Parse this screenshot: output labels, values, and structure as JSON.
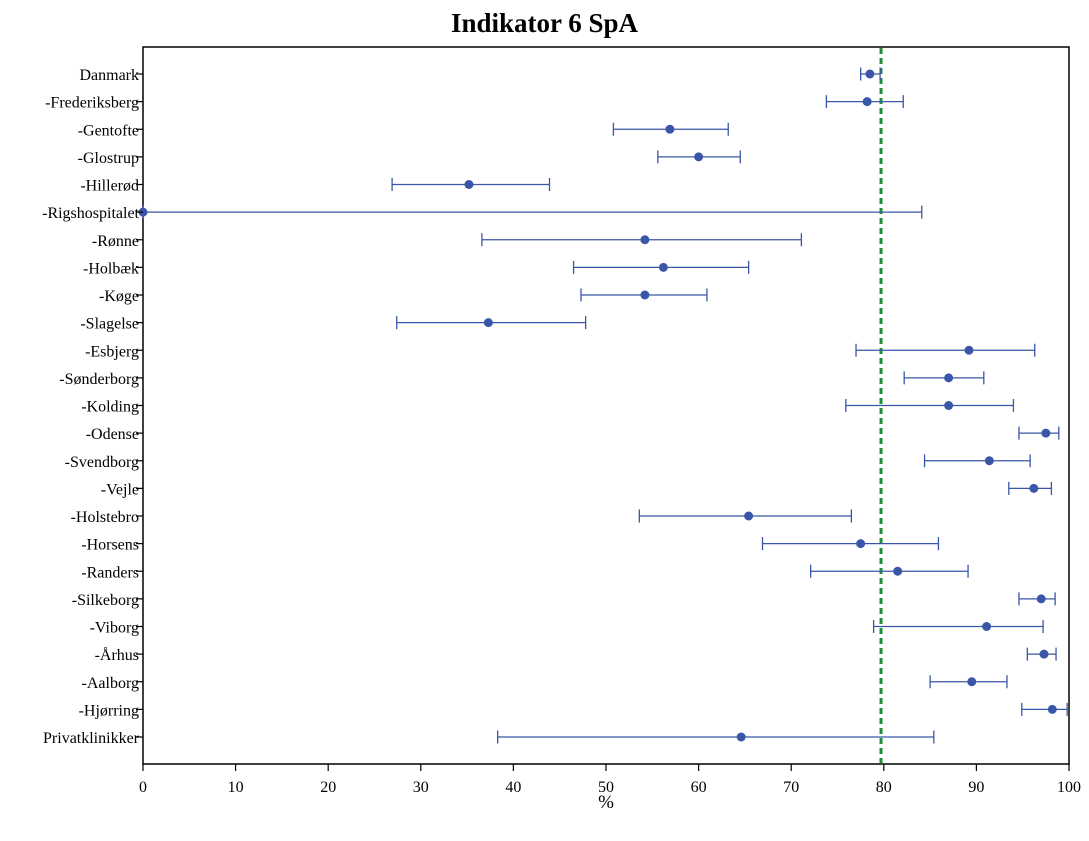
{
  "chart_data": {
    "type": "scatter",
    "title": "Indikator 6 SpA",
    "xlabel": "%",
    "ylabel": "",
    "xlim": [
      0,
      100
    ],
    "xticks": [
      0,
      10,
      20,
      30,
      40,
      50,
      60,
      70,
      80,
      90,
      100
    ],
    "grid": false,
    "legend": "none",
    "reference_line": {
      "x": 79.7,
      "style": "dashed",
      "color": "#1e8c3a"
    },
    "colors": {
      "points": "#3a56a8",
      "error_bars": "#3a56a8",
      "axes": "#000000"
    },
    "categories": [
      "Danmark",
      "-Frederiksberg",
      "-Gentofte",
      "-Glostrup",
      "-Hillerød",
      "-Rigshospitalet",
      "-Rønne",
      "-Holbæk",
      "-Køge",
      "-Slagelse",
      "-Esbjerg",
      "-Sønderborg",
      "-Kolding",
      "-Odense",
      "-Svendborg",
      "-Vejle",
      "-Holstebro",
      "-Horsens",
      "-Randers",
      "-Silkeborg",
      "-Viborg",
      "-Århus",
      "-Aalborg",
      "-Hjørring",
      "Privatklinikker"
    ],
    "values": [
      78.5,
      78.2,
      56.9,
      60.0,
      35.2,
      0.0,
      54.2,
      56.2,
      54.2,
      37.3,
      89.2,
      87.0,
      87.0,
      97.5,
      91.4,
      96.2,
      65.4,
      77.5,
      81.5,
      97.0,
      91.1,
      97.3,
      89.5,
      98.2,
      64.6
    ],
    "lower": [
      77.5,
      73.8,
      50.8,
      55.6,
      26.9,
      0.0,
      36.6,
      46.5,
      47.3,
      27.4,
      77.0,
      82.2,
      75.9,
      94.6,
      84.4,
      93.5,
      53.6,
      66.9,
      72.1,
      94.6,
      78.9,
      95.5,
      85.0,
      94.9,
      38.3
    ],
    "upper": [
      79.6,
      82.1,
      63.2,
      64.5,
      43.9,
      84.1,
      71.1,
      65.4,
      60.9,
      47.8,
      96.3,
      90.8,
      94.0,
      98.9,
      95.8,
      98.1,
      76.5,
      85.9,
      89.1,
      98.5,
      97.2,
      98.6,
      93.3,
      99.8,
      85.4
    ]
  }
}
